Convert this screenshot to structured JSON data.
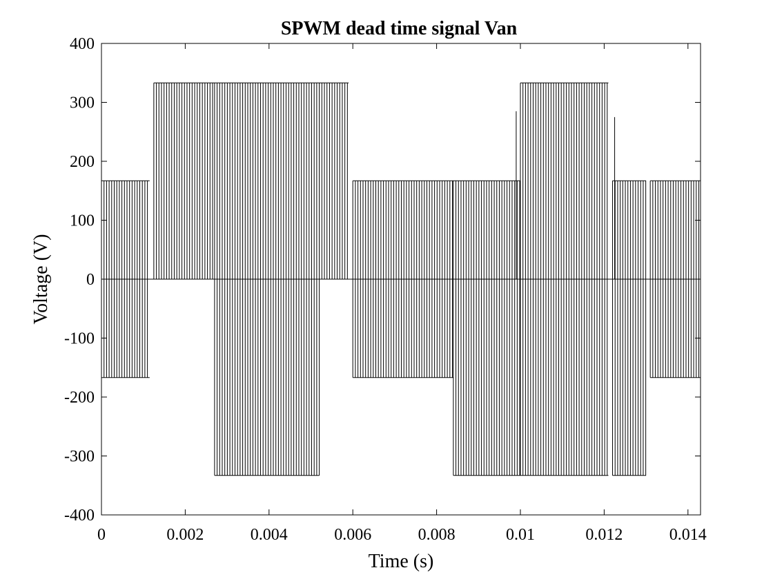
{
  "chart_data": {
    "type": "line",
    "title": "SPWM dead time signal Van",
    "xlabel": "Time (s)",
    "ylabel": "Voltage (V)",
    "xlim": [
      0,
      0.0143
    ],
    "ylim": [
      -400,
      400
    ],
    "xticks": [
      "0",
      "0.002",
      "0.004",
      "0.006",
      "0.008",
      "0.01",
      "0.012",
      "0.014"
    ],
    "yticks": [
      "400",
      "300",
      "200",
      "100",
      "0",
      "-100",
      "-200",
      "-300",
      "-400"
    ],
    "grid": false,
    "series": [
      {
        "color": "#000000",
        "switching_pulse_levels_V": [
          333,
          167,
          0,
          -167,
          -333
        ],
        "segments": [
          {
            "t_start": 0.0,
            "t_end": 0.00115,
            "high_V": 167,
            "low_V": -167
          },
          {
            "t_start": 0.00125,
            "t_end": 0.0027,
            "high_V": 333,
            "low_V": 0
          },
          {
            "t_start": 0.0027,
            "t_end": 0.0052,
            "high_V": 333,
            "low_V": -333
          },
          {
            "t_start": 0.0052,
            "t_end": 0.0059,
            "high_V": 333,
            "low_V": 0
          },
          {
            "t_start": 0.006,
            "t_end": 0.0084,
            "high_V": 167,
            "low_V": -167
          },
          {
            "t_start": 0.0084,
            "t_end": 0.01,
            "high_V": 167,
            "low_V": -333
          },
          {
            "t_start": 0.01,
            "t_end": 0.0121,
            "high_V": 333,
            "low_V": -333
          },
          {
            "t_start": 0.0122,
            "t_end": 0.013,
            "high_V": 167,
            "low_V": -333
          },
          {
            "t_start": 0.0131,
            "t_end": 0.0143,
            "high_V": 167,
            "low_V": -167
          }
        ],
        "notable_points": [
          {
            "t": 0.0099,
            "v": 285
          },
          {
            "t": 0.01225,
            "v": 275
          }
        ]
      }
    ]
  }
}
